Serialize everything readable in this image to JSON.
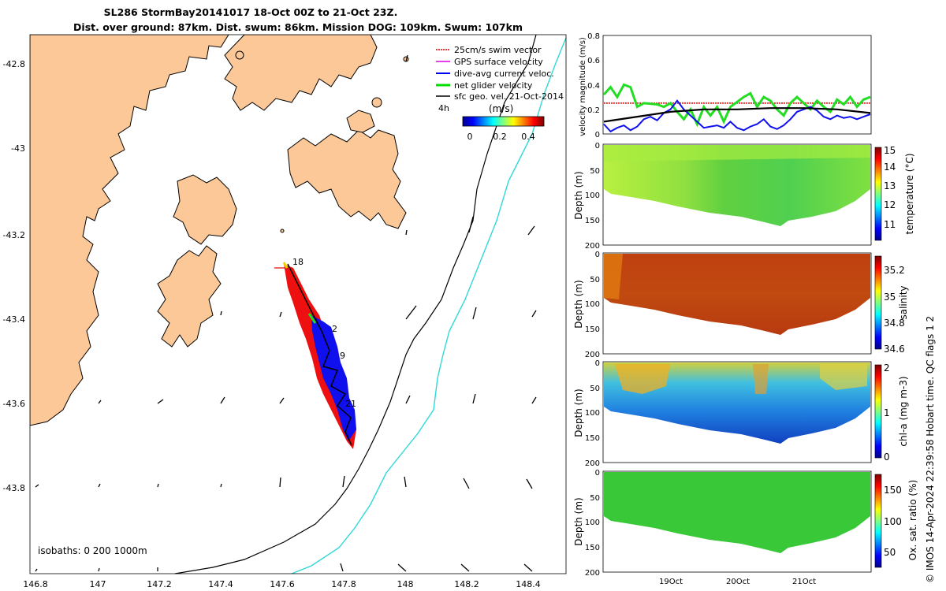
{
  "title": {
    "line1": "SL286 StormBay20141017 18-Oct 00Z to 21-Oct 23Z.",
    "line2": "Dist. over ground: 87km. Dist. swum: 86km. Mission DOG: 109km. Swum: 107km"
  },
  "map": {
    "lon_ticks": [
      "146.8",
      "147",
      "147.2",
      "147.4",
      "147.6",
      "147.8",
      "148",
      "148.2",
      "148.4"
    ],
    "lat_ticks": [
      "-42.8",
      "-43",
      "-43.2",
      "-43.4",
      "-43.6",
      "-43.8"
    ],
    "isobath_label": "isobaths: 0   200  1000m",
    "track_labels": [
      "18",
      "2",
      "9",
      "21"
    ],
    "legend": [
      {
        "label": "25cm/s swim vector",
        "color": "#e00000"
      },
      {
        "label": "GPS surface velocity",
        "color": "#e000e0"
      },
      {
        "label": "dive-avg current veloc.",
        "color": "#0000ff"
      },
      {
        "label": "net glider velocity",
        "color": "#00dd00"
      },
      {
        "label": "sfc geo. vel. 21-Oct-2014",
        "color": "#000000"
      }
    ],
    "scale_label": "4h",
    "colorbar": {
      "unit": "(m/s)",
      "ticks": [
        "0",
        "0.2",
        "0.4"
      ]
    },
    "colors": {
      "land": "#fcc898",
      "isobath_200": "#000000",
      "isobath_1000": "#30d8d8"
    }
  },
  "chart_data": [
    {
      "type": "line",
      "ylabel": "velocity magnitude (m/s)",
      "ylim": [
        0,
        0.8
      ],
      "yticks": [
        "0",
        "0.2",
        "0.4",
        "0.6",
        "0.8"
      ],
      "x_range_days": [
        18.0,
        22.0
      ],
      "series": [
        {
          "name": "25cm/s swim vector",
          "color": "#e00000",
          "x": [
            18.0,
            22.0
          ],
          "values": [
            0.25,
            0.25
          ]
        },
        {
          "name": "net glider velocity",
          "color": "#22dd22",
          "x": [
            18.0,
            18.1,
            18.2,
            18.3,
            18.4,
            18.5,
            18.6,
            18.8,
            18.9,
            19.0,
            19.1,
            19.2,
            19.3,
            19.4,
            19.5,
            19.6,
            19.7,
            19.8,
            19.9,
            20.0,
            20.1,
            20.2,
            20.3,
            20.4,
            20.5,
            20.6,
            20.7,
            20.8,
            20.9,
            21.0,
            21.1,
            21.2,
            21.3,
            21.4,
            21.5,
            21.6,
            21.7,
            21.8,
            21.9,
            22.0
          ],
          "values": [
            0.32,
            0.38,
            0.3,
            0.4,
            0.38,
            0.22,
            0.25,
            0.24,
            0.22,
            0.25,
            0.18,
            0.12,
            0.2,
            0.08,
            0.22,
            0.15,
            0.22,
            0.1,
            0.22,
            0.26,
            0.3,
            0.33,
            0.22,
            0.3,
            0.27,
            0.2,
            0.15,
            0.25,
            0.3,
            0.25,
            0.2,
            0.27,
            0.22,
            0.18,
            0.28,
            0.24,
            0.3,
            0.22,
            0.28,
            0.3
          ]
        },
        {
          "name": "dive-avg current veloc.",
          "color": "#1010ee",
          "x": [
            18.0,
            18.1,
            18.2,
            18.3,
            18.4,
            18.5,
            18.6,
            18.7,
            18.8,
            18.9,
            19.0,
            19.1,
            19.2,
            19.3,
            19.4,
            19.5,
            19.6,
            19.7,
            19.8,
            19.9,
            20.0,
            20.1,
            20.2,
            20.3,
            20.4,
            20.5,
            20.6,
            20.7,
            20.8,
            20.9,
            21.0,
            21.1,
            21.2,
            21.3,
            21.4,
            21.5,
            21.6,
            21.7,
            21.8,
            21.9,
            22.0
          ],
          "values": [
            0.08,
            0.02,
            0.05,
            0.07,
            0.03,
            0.06,
            0.12,
            0.14,
            0.11,
            0.17,
            0.2,
            0.27,
            0.2,
            0.15,
            0.1,
            0.05,
            0.06,
            0.07,
            0.05,
            0.1,
            0.05,
            0.03,
            0.06,
            0.08,
            0.12,
            0.06,
            0.04,
            0.07,
            0.12,
            0.18,
            0.2,
            0.22,
            0.19,
            0.14,
            0.12,
            0.15,
            0.13,
            0.14,
            0.12,
            0.14,
            0.16
          ]
        },
        {
          "name": "sfc geo. vel.",
          "color": "#000000",
          "x": [
            18.0,
            18.5,
            19.0,
            19.5,
            20.0,
            20.5,
            21.0,
            21.5,
            22.0
          ],
          "values": [
            0.1,
            0.14,
            0.18,
            0.2,
            0.2,
            0.21,
            0.21,
            0.2,
            0.17
          ]
        }
      ]
    },
    {
      "type": "heatmap",
      "ylabel": "Depth (m)",
      "ylim": [
        0,
        200
      ],
      "yticks": [
        "0",
        "50",
        "100",
        "150",
        "200"
      ],
      "colorbar_label": "temperature (°C)",
      "colorbar_ticks": [
        "11",
        "12",
        "13",
        "14",
        "15"
      ]
    },
    {
      "type": "heatmap",
      "ylabel": "Depth (m)",
      "ylim": [
        0,
        200
      ],
      "yticks": [
        "0",
        "50",
        "100",
        "150",
        "200"
      ],
      "colorbar_label": "salinity",
      "colorbar_ticks": [
        "34.6",
        "34.8",
        "35",
        "35.2"
      ]
    },
    {
      "type": "heatmap",
      "ylabel": "Depth (m)",
      "ylim": [
        0,
        200
      ],
      "yticks": [
        "0",
        "50",
        "100",
        "150",
        "200"
      ],
      "colorbar_label": "chl-a (mg m-3)",
      "colorbar_ticks": [
        "0",
        "1",
        "2"
      ]
    },
    {
      "type": "heatmap",
      "ylabel": "Depth (m)",
      "ylim": [
        0,
        200
      ],
      "yticks": [
        "0",
        "50",
        "100",
        "150",
        "200"
      ],
      "colorbar_label": "Ox. sat. ratio (%)",
      "colorbar_ticks": [
        "50",
        "100",
        "150"
      ],
      "xticks": [
        "19Oct",
        "20Oct",
        "21Oct"
      ]
    }
  ],
  "credit": "© IMOS 14-Apr-2024 22:39:58 Hobart time. QC flags 1  2"
}
